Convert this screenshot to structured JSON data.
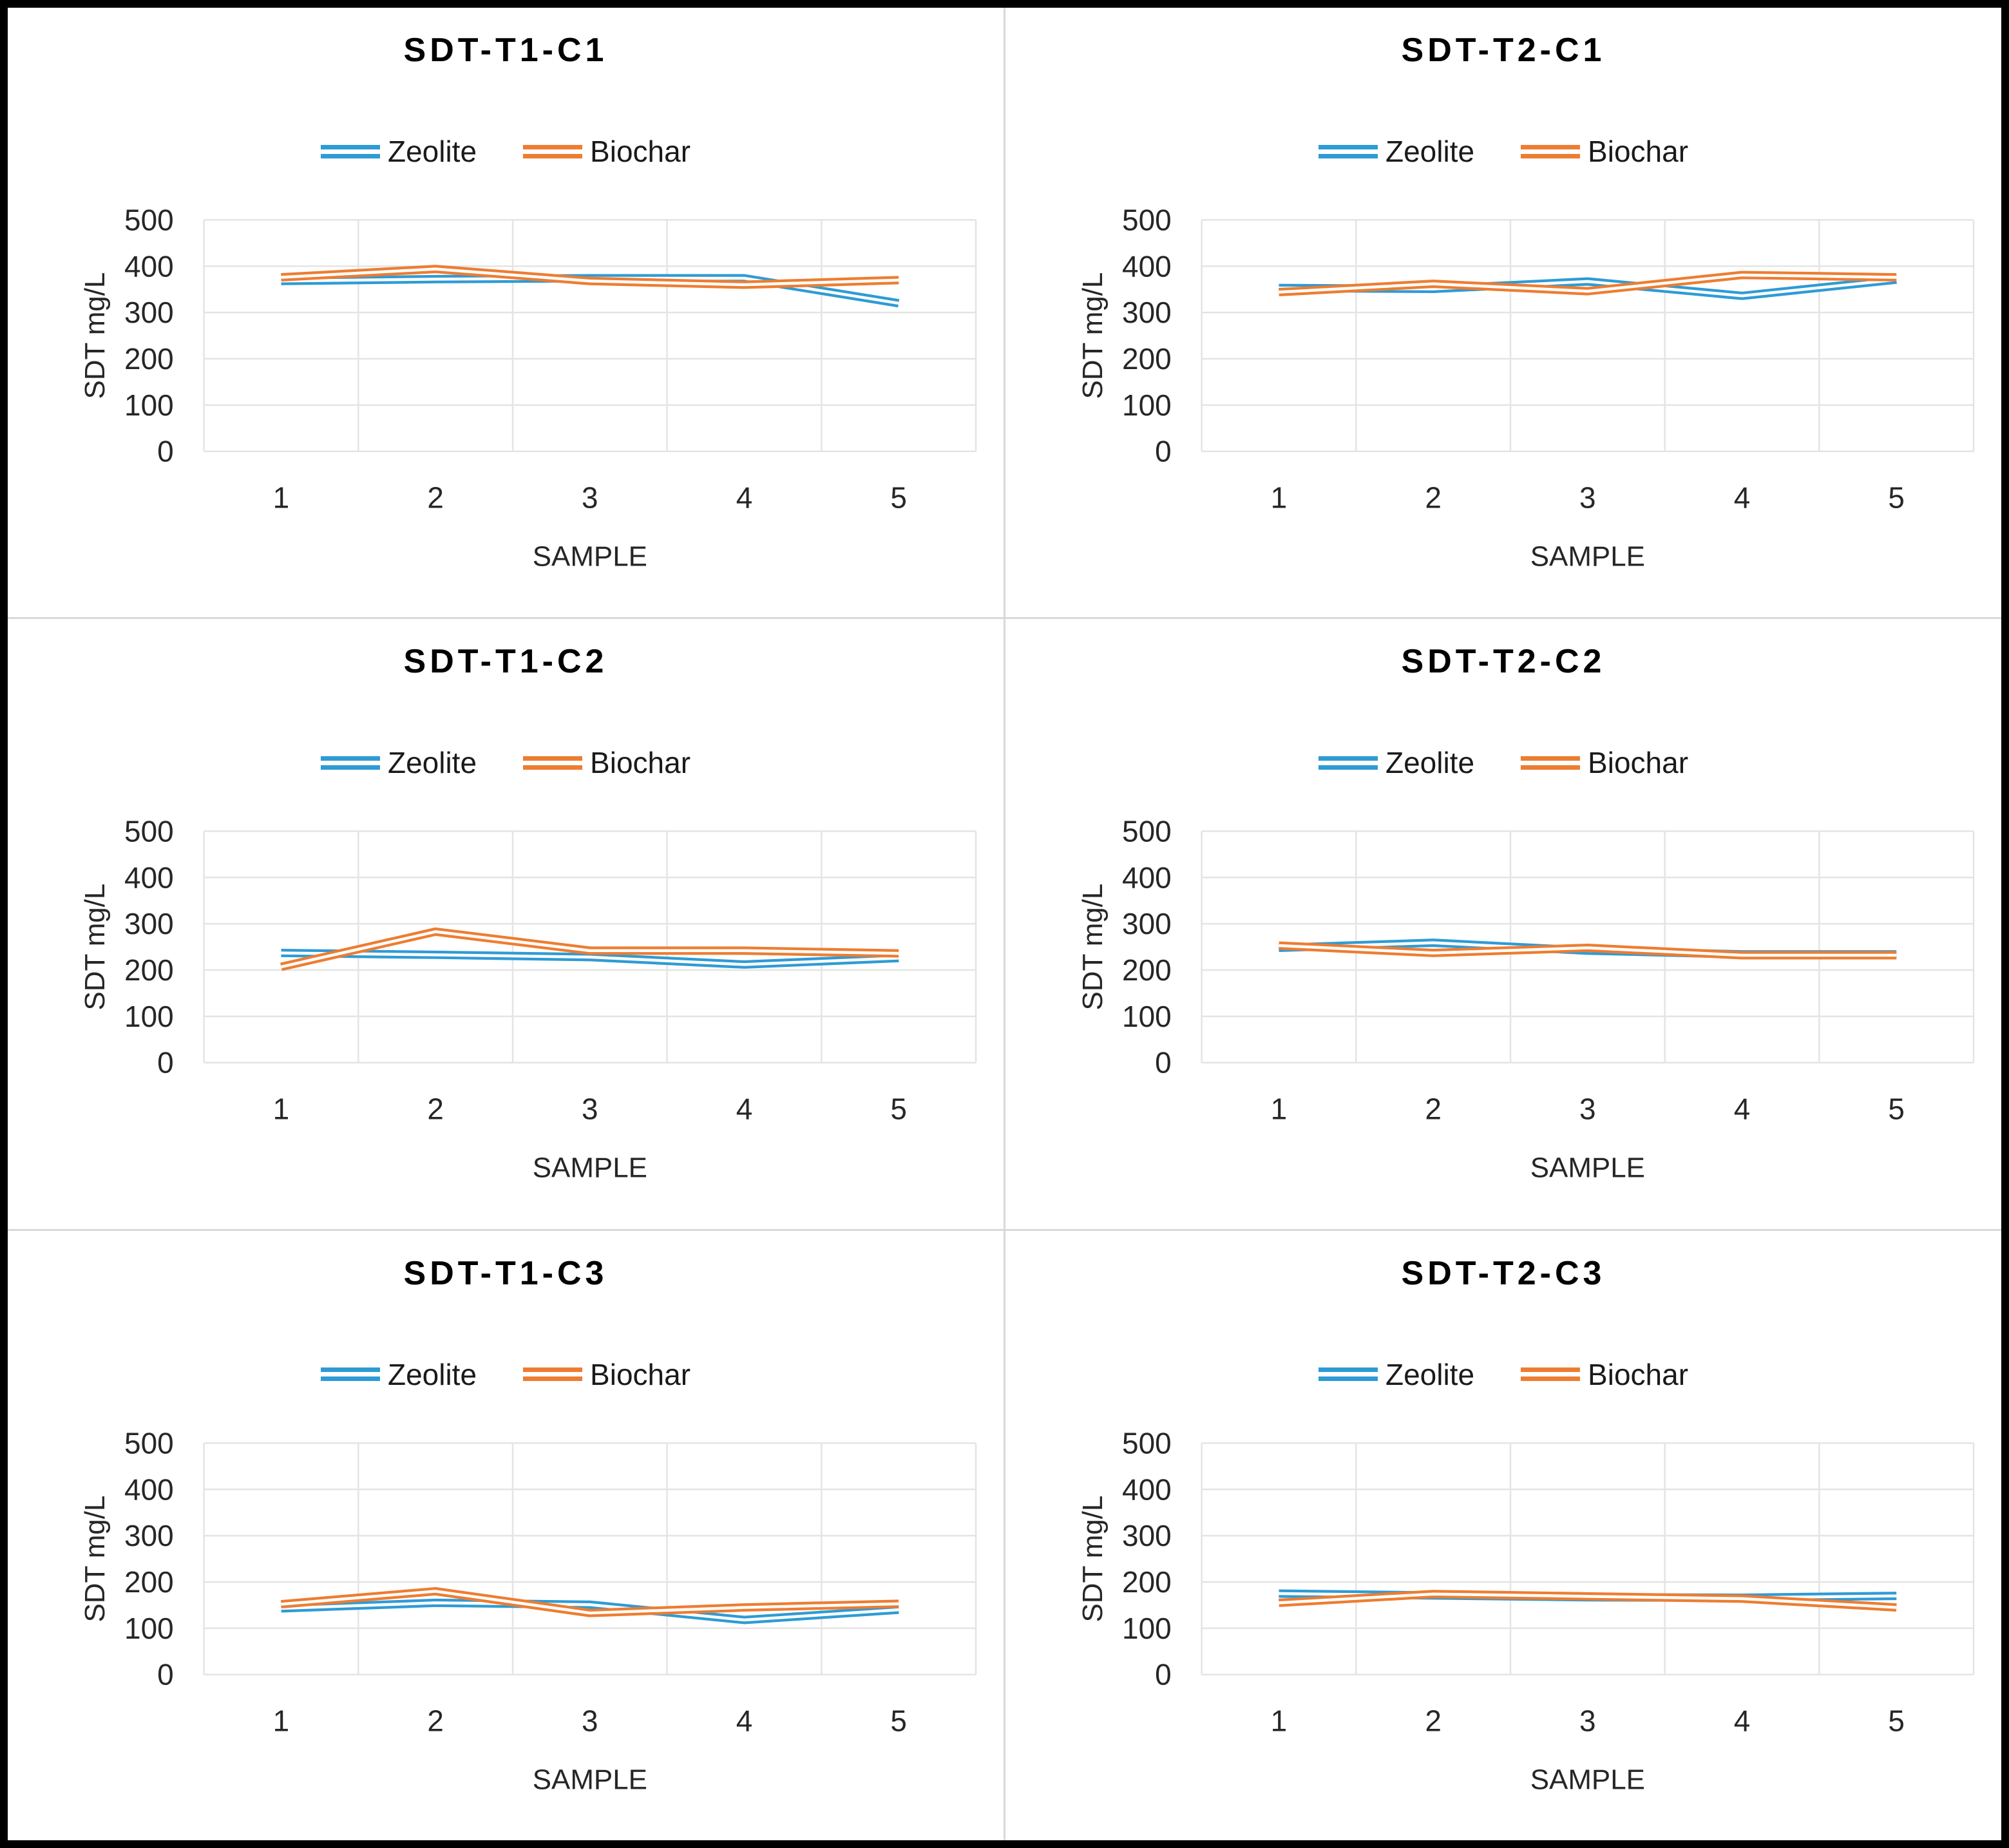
{
  "figure": {
    "background": "#ffffff",
    "outer_border_color": "#000000",
    "divider_color": "#d9d9d9",
    "grid_color": "#e4e4e4",
    "tick_label_color": "#262626",
    "axis_title_color": "#262626",
    "title_color": "#000000",
    "legend_label_color": "#1a1a1a",
    "series_line_core_color": "#ffffff"
  },
  "series_names": [
    "Zeolite",
    "Biochar"
  ],
  "chart_data": [
    {
      "type": "line",
      "title": "SDT-T1-C1",
      "categories": [
        "1",
        "2",
        "3",
        "4",
        "5"
      ],
      "xlabel": "SAMPLE",
      "ylabel": "SDT mg/L",
      "ylim": [
        0,
        500
      ],
      "yticks": [
        0,
        100,
        200,
        300,
        400,
        500
      ],
      "grid": true,
      "legend_position": "top",
      "series": [
        {
          "name": "Zeolite",
          "color": "#2E9BD5",
          "values": [
            368,
            372,
            374,
            374,
            320
          ]
        },
        {
          "name": "Biochar",
          "color": "#ED7D31",
          "values": [
            376,
            394,
            368,
            360,
            370
          ]
        }
      ]
    },
    {
      "type": "line",
      "title": "SDT-T2-C1",
      "categories": [
        "1",
        "2",
        "3",
        "4",
        "5"
      ],
      "xlabel": "SAMPLE",
      "ylabel": "SDT mg/L",
      "ylim": [
        0,
        500
      ],
      "yticks": [
        0,
        100,
        200,
        300,
        400,
        500
      ],
      "grid": true,
      "legend_position": "top",
      "series": [
        {
          "name": "Zeolite",
          "color": "#2E9BD5",
          "values": [
            353,
            351,
            367,
            336,
            371
          ]
        },
        {
          "name": "Biochar",
          "color": "#ED7D31",
          "values": [
            344,
            362,
            346,
            381,
            376
          ]
        }
      ]
    },
    {
      "type": "line",
      "title": "SDT-T1-C2",
      "categories": [
        "1",
        "2",
        "3",
        "4",
        "5"
      ],
      "xlabel": "SAMPLE",
      "ylabel": "SDT mg/L",
      "ylim": [
        0,
        500
      ],
      "yticks": [
        0,
        100,
        200,
        300,
        400,
        500
      ],
      "grid": true,
      "legend_position": "top",
      "series": [
        {
          "name": "Zeolite",
          "color": "#2E9BD5",
          "values": [
            237,
            233,
            228,
            212,
            226
          ]
        },
        {
          "name": "Biochar",
          "color": "#ED7D31",
          "values": [
            207,
            283,
            242,
            242,
            236
          ]
        }
      ]
    },
    {
      "type": "line",
      "title": "SDT-T2-C2",
      "categories": [
        "1",
        "2",
        "3",
        "4",
        "5"
      ],
      "xlabel": "SAMPLE",
      "ylabel": "SDT mg/L",
      "ylim": [
        0,
        500
      ],
      "yticks": [
        0,
        100,
        200,
        300,
        400,
        500
      ],
      "grid": true,
      "legend_position": "top",
      "series": [
        {
          "name": "Zeolite",
          "color": "#2E9BD5",
          "values": [
            248,
            259,
            242,
            234,
            234
          ]
        },
        {
          "name": "Biochar",
          "color": "#ED7D31",
          "values": [
            253,
            237,
            248,
            232,
            232
          ]
        }
      ]
    },
    {
      "type": "line",
      "title": "SDT-T1-C3",
      "categories": [
        "1",
        "2",
        "3",
        "4",
        "5"
      ],
      "xlabel": "SAMPLE",
      "ylabel": "SDT mg/L",
      "ylim": [
        0,
        500
      ],
      "yticks": [
        0,
        100,
        200,
        300,
        400,
        500
      ],
      "grid": true,
      "legend_position": "top",
      "series": [
        {
          "name": "Zeolite",
          "color": "#2E9BD5",
          "values": [
            143,
            155,
            151,
            118,
            140
          ]
        },
        {
          "name": "Biochar",
          "color": "#ED7D31",
          "values": [
            152,
            180,
            133,
            145,
            153
          ]
        }
      ]
    },
    {
      "type": "line",
      "title": "SDT-T2-C3",
      "categories": [
        "1",
        "2",
        "3",
        "4",
        "5"
      ],
      "xlabel": "SAMPLE",
      "ylabel": "SDT mg/L",
      "ylim": [
        0,
        500
      ],
      "yticks": [
        0,
        100,
        200,
        300,
        400,
        500
      ],
      "grid": true,
      "legend_position": "top",
      "series": [
        {
          "name": "Zeolite",
          "color": "#2E9BD5",
          "values": [
            175,
            171,
            167,
            166,
            170
          ]
        },
        {
          "name": "Biochar",
          "color": "#ED7D31",
          "values": [
            155,
            174,
            169,
            164,
            145
          ]
        }
      ]
    }
  ]
}
